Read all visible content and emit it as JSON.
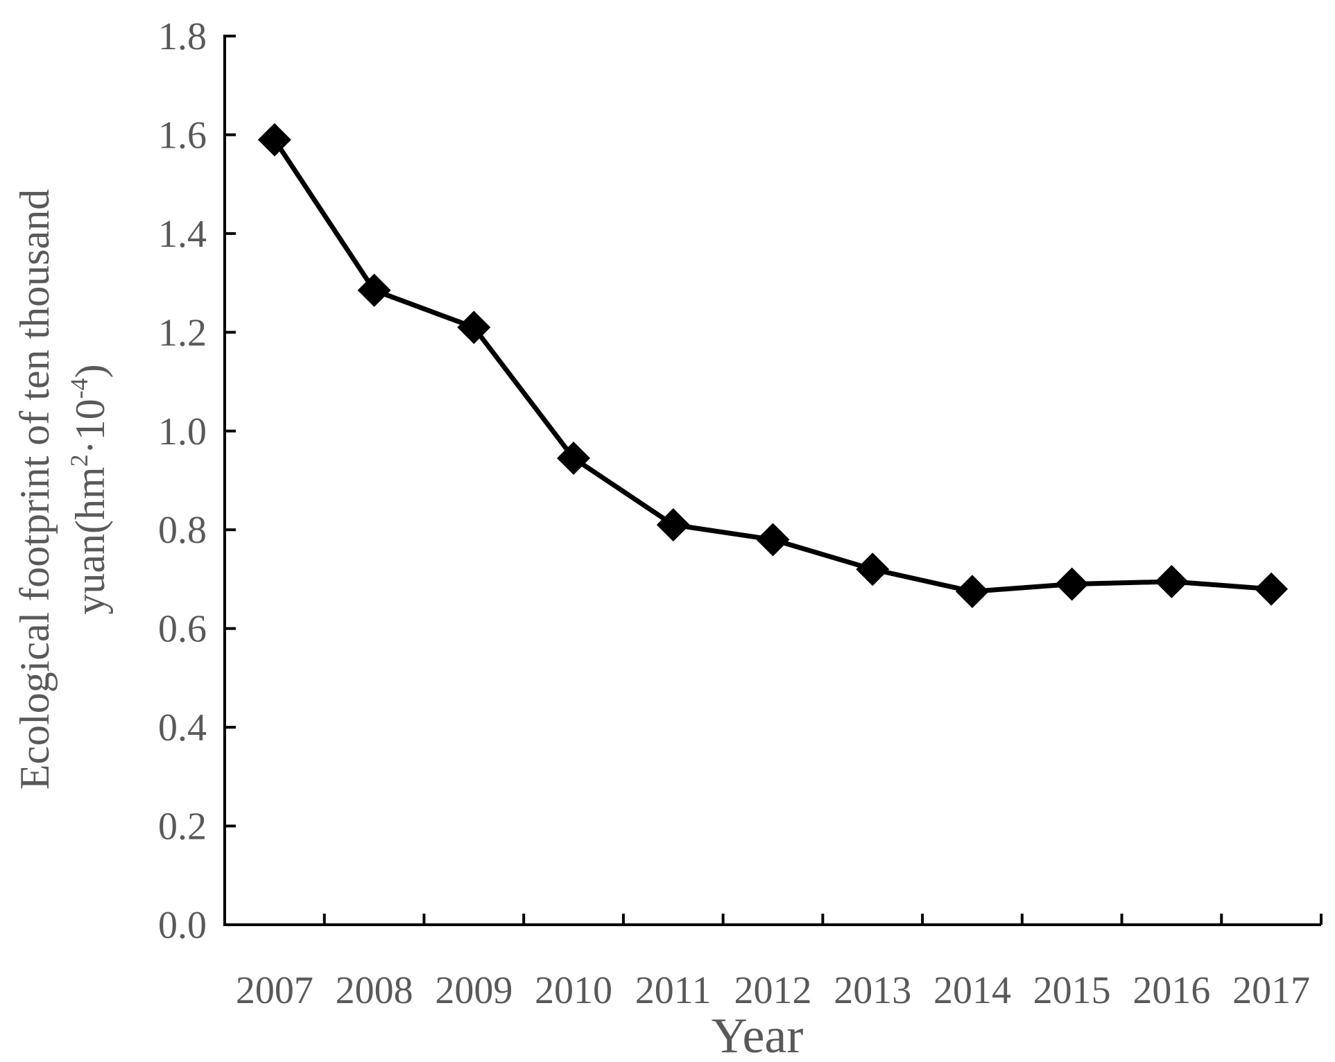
{
  "chart_data": {
    "type": "line",
    "x": [
      "2007",
      "2008",
      "2009",
      "2010",
      "2011",
      "2012",
      "2013",
      "2014",
      "2015",
      "2016",
      "2017"
    ],
    "series": [
      {
        "values": [
          1.59,
          1.285,
          1.21,
          0.945,
          0.81,
          0.78,
          0.72,
          0.675,
          0.69,
          0.695,
          0.68
        ],
        "color": "#000000",
        "marker": "diamond"
      }
    ],
    "xlabel": "Year",
    "ylabel_line1": "Ecological footprint of ten thousand",
    "ylabel_line2": "yuan(hm",
    "ylabel_sup1": "2",
    "ylabel_mid": "·10",
    "ylabel_sup2": "-4",
    "ylabel_end": ")",
    "ylim": [
      0,
      1.8
    ],
    "yticks": [
      "0.0",
      "0.2",
      "0.4",
      "0.6",
      "0.8",
      "1.0",
      "1.2",
      "1.4",
      "1.6",
      "1.8"
    ],
    "grid": false,
    "legend": "none"
  }
}
